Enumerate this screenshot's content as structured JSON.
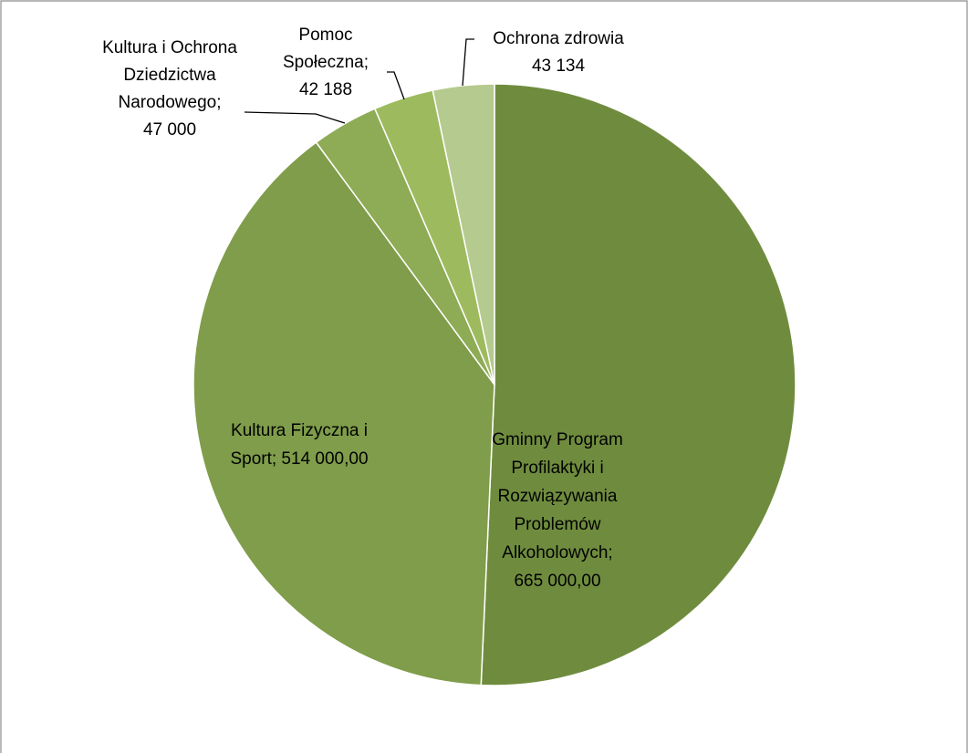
{
  "chart_data": {
    "type": "pie",
    "title": "",
    "slices": [
      {
        "category": "Gminny Program Profilaktyki i Rozwiązywania Problemów Alkoholowych",
        "value": 665000,
        "label_lines": [
          "Gminny Program",
          "Profilaktyki i",
          "Rozwiązywania",
          "Problemów",
          "Alkoholowych;",
          "665 000,00"
        ],
        "color": "#6f8c3e"
      },
      {
        "category": "Kultura Fizyczna i Sport",
        "value": 514000,
        "label_lines": [
          "Kultura Fizyczna i",
          "Sport; 514 000,00"
        ],
        "color": "#7f9d4a"
      },
      {
        "category": "Kultura i Ochrona Dziedzictwa Narodowego",
        "value": 47000,
        "label_lines": [
          "Kultura i Ochrona",
          "Dziedzictwa",
          "Narodowego;",
          "47 000"
        ],
        "color": "#8eab55"
      },
      {
        "category": "Pomoc Społeczna",
        "value": 42188,
        "label_lines": [
          "Pomoc",
          "Społeczna;",
          "42 188"
        ],
        "color": "#9dbb5e"
      },
      {
        "category": "Ochrona zdrowia",
        "value": 43134,
        "label_lines": [
          "Ochrona zdrowia",
          "43 134"
        ],
        "color": "#b5ca8e"
      }
    ],
    "legend": "none"
  },
  "colors": {
    "border": "#8c8c8c",
    "leader_line": "#000000",
    "background": "#ffffff"
  }
}
